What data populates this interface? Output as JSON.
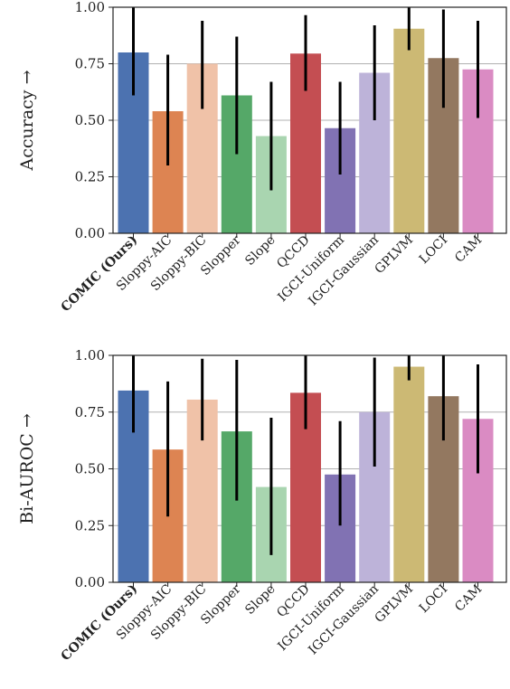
{
  "chart_data": [
    {
      "type": "bar",
      "ylabel": "Accuracy →",
      "ylim": [
        0,
        1
      ],
      "yticks": [
        "0.00",
        "0.25",
        "0.50",
        "0.75",
        "1.00"
      ],
      "grid": true,
      "categories": [
        "COMIC (Ours)",
        "Sloppy-AIC",
        "Sloppy-BIC",
        "Slopper",
        "Slope",
        "QCCD",
        "IGCI-Uniform",
        "IGCI-Gaussian",
        "GPLVM",
        "LOCI",
        "CAM"
      ],
      "values": [
        0.8,
        0.54,
        0.75,
        0.61,
        0.43,
        0.795,
        0.465,
        0.71,
        0.905,
        0.775,
        0.725
      ],
      "err_low": [
        0.61,
        0.3,
        0.55,
        0.35,
        0.19,
        0.63,
        0.26,
        0.5,
        0.81,
        0.555,
        0.51
      ],
      "err_high": [
        1.0,
        0.79,
        0.94,
        0.87,
        0.67,
        0.965,
        0.67,
        0.92,
        1.0,
        0.99,
        0.94
      ]
    },
    {
      "type": "bar",
      "ylabel": "Bi-AUROC →",
      "ylim": [
        0,
        1
      ],
      "yticks": [
        "0.00",
        "0.25",
        "0.50",
        "0.75",
        "1.00"
      ],
      "grid": true,
      "categories": [
        "COMIC (Ours)",
        "Sloppy-AIC",
        "Sloppy-BIC",
        "Slopper",
        "Slope",
        "QCCD",
        "IGCI-Uniform",
        "IGCI-Gaussian",
        "GPLVM",
        "LOCI",
        "CAM"
      ],
      "values": [
        0.845,
        0.585,
        0.805,
        0.665,
        0.42,
        0.835,
        0.475,
        0.75,
        0.95,
        0.82,
        0.72
      ],
      "err_low": [
        0.66,
        0.29,
        0.625,
        0.36,
        0.12,
        0.675,
        0.25,
        0.51,
        0.89,
        0.625,
        0.48
      ],
      "err_high": [
        1.0,
        0.885,
        0.985,
        0.98,
        0.725,
        1.0,
        0.71,
        0.99,
        1.0,
        1.0,
        0.96
      ]
    }
  ],
  "colors": [
    "#4c72b0",
    "#dd8452",
    "#f0c2a8",
    "#55a868",
    "#a9d5b0",
    "#c44e52",
    "#8172b3",
    "#bdb3d9",
    "#ccb974",
    "#937860",
    "#da8bc3"
  ],
  "bold_categories": [
    "COMIC (Ours)"
  ]
}
